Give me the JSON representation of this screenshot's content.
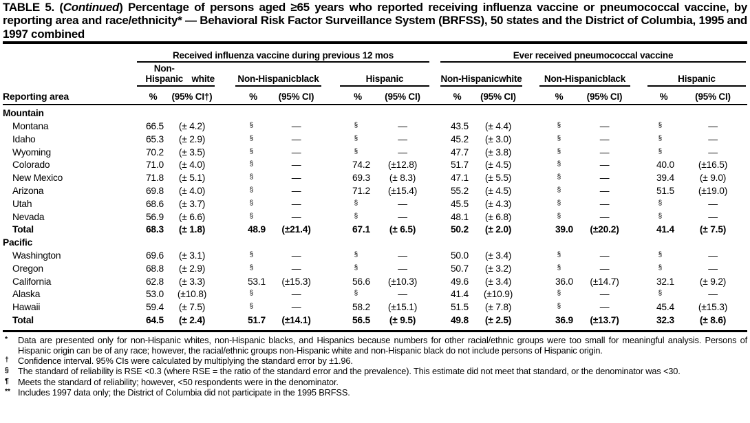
{
  "title": {
    "lead": "TABLE 5. (",
    "continued": "Continued",
    "rest": ") Percentage of persons aged ≥65 years who reported receiving influenza vaccine or pneumococcal vaccine, by reporting area and race/ethnicity* — Behavioral Risk Factor Surveillance System (BRFSS), 50 states and the District of Columbia, 1995 and 1997 combined"
  },
  "table": {
    "reporting_area_label": "Reporting area",
    "pct_label": "%",
    "ci_labels": [
      "(95% CI†)",
      "(95% CI)",
      "(95% CI)",
      "(95% CI)",
      "(95% CI)",
      "(95% CI)"
    ],
    "groups": [
      {
        "label": "Received influenza vaccine during previous 12 mos",
        "subgroups": [
          [
            "Non-Hispanic",
            "white"
          ],
          [
            "Non-Hispanic",
            "black"
          ],
          [
            "Hispanic"
          ]
        ]
      },
      {
        "label": "Ever received pneumococcal vaccine",
        "subgroups": [
          [
            "Non-Hispanic",
            "white"
          ],
          [
            "Non-Hispanic",
            "black"
          ],
          [
            "Hispanic"
          ]
        ]
      }
    ],
    "missing_symbol": "§",
    "missing_ci": "—",
    "sections": [
      {
        "name": "Mountain",
        "rows": [
          {
            "area": "Montana",
            "values": [
              [
                "66.5",
                "(± 4.2)"
              ],
              [
                "§",
                "—"
              ],
              [
                "§",
                "—"
              ],
              [
                "43.5",
                "(± 4.4)"
              ],
              [
                "§",
                "—"
              ],
              [
                "§",
                "—"
              ]
            ]
          },
          {
            "area": "Idaho",
            "values": [
              [
                "65.3",
                "(± 2.9)"
              ],
              [
                "§",
                "—"
              ],
              [
                "§",
                "—"
              ],
              [
                "45.2",
                "(± 3.0)"
              ],
              [
                "§",
                "—"
              ],
              [
                "§",
                "—"
              ]
            ]
          },
          {
            "area": "Wyoming",
            "values": [
              [
                "70.2",
                "(± 3.5)"
              ],
              [
                "§",
                "—"
              ],
              [
                "§",
                "—"
              ],
              [
                "47.7",
                "(± 3.8)"
              ],
              [
                "§",
                "—"
              ],
              [
                "§",
                "—"
              ]
            ]
          },
          {
            "area": "Colorado",
            "values": [
              [
                "71.0",
                "(± 4.0)"
              ],
              [
                "§",
                "—"
              ],
              [
                "74.2",
                "(±12.8)"
              ],
              [
                "51.7",
                "(± 4.5)"
              ],
              [
                "§",
                "—"
              ],
              [
                "40.0",
                "(±16.5)"
              ]
            ]
          },
          {
            "area": "New Mexico",
            "values": [
              [
                "71.8",
                "(± 5.1)"
              ],
              [
                "§",
                "—"
              ],
              [
                "69.3",
                "(± 8.3)"
              ],
              [
                "47.1",
                "(± 5.5)"
              ],
              [
                "§",
                "—"
              ],
              [
                "39.4",
                "(± 9.0)"
              ]
            ]
          },
          {
            "area": "Arizona",
            "values": [
              [
                "69.8",
                "(± 4.0)"
              ],
              [
                "§",
                "—"
              ],
              [
                "71.2",
                "(±15.4)"
              ],
              [
                "55.2",
                "(± 4.5)"
              ],
              [
                "§",
                "—"
              ],
              [
                "51.5",
                "(±19.0)"
              ]
            ]
          },
          {
            "area": "Utah",
            "values": [
              [
                "68.6",
                "(± 3.7)"
              ],
              [
                "§",
                "—"
              ],
              [
                "§",
                "—"
              ],
              [
                "45.5",
                "(± 4.3)"
              ],
              [
                "§",
                "—"
              ],
              [
                "§",
                "—"
              ]
            ]
          },
          {
            "area": "Nevada",
            "values": [
              [
                "56.9",
                "(± 6.6)"
              ],
              [
                "§",
                "—"
              ],
              [
                "§",
                "—"
              ],
              [
                "48.1",
                "(± 6.8)"
              ],
              [
                "§",
                "—"
              ],
              [
                "§",
                "—"
              ]
            ]
          },
          {
            "area": "Total",
            "bold": true,
            "values": [
              [
                "68.3",
                "(± 1.8)"
              ],
              [
                "48.9",
                "(±21.4)"
              ],
              [
                "67.1",
                "(± 6.5)"
              ],
              [
                "50.2",
                "(± 2.0)"
              ],
              [
                "39.0",
                "(±20.2)"
              ],
              [
                "41.4",
                "(± 7.5)"
              ]
            ]
          }
        ]
      },
      {
        "name": "Pacific",
        "rows": [
          {
            "area": "Washington",
            "values": [
              [
                "69.6",
                "(± 3.1)"
              ],
              [
                "§",
                "—"
              ],
              [
                "§",
                "—"
              ],
              [
                "50.0",
                "(± 3.4)"
              ],
              [
                "§",
                "—"
              ],
              [
                "§",
                "—"
              ]
            ]
          },
          {
            "area": "Oregon",
            "values": [
              [
                "68.8",
                "(± 2.9)"
              ],
              [
                "§",
                "—"
              ],
              [
                "§",
                "—"
              ],
              [
                "50.7",
                "(± 3.2)"
              ],
              [
                "§",
                "—"
              ],
              [
                "§",
                "—"
              ]
            ]
          },
          {
            "area": "California",
            "values": [
              [
                "62.8",
                "(± 3.3)"
              ],
              [
                "53.1",
                "(±15.3)"
              ],
              [
                "56.6",
                "(±10.3)"
              ],
              [
                "49.6",
                "(± 3.4)"
              ],
              [
                "36.0",
                "(±14.7)"
              ],
              [
                "32.1",
                "(± 9.2)"
              ]
            ]
          },
          {
            "area": "Alaska",
            "values": [
              [
                "53.0",
                "(±10.8)"
              ],
              [
                "§",
                "—"
              ],
              [
                "§",
                "—"
              ],
              [
                "41.4",
                "(±10.9)"
              ],
              [
                "§",
                "—"
              ],
              [
                "§",
                "—"
              ]
            ]
          },
          {
            "area": "Hawaii",
            "values": [
              [
                "59.4",
                "(± 7.5)"
              ],
              [
                "§",
                "—"
              ],
              [
                "58.2",
                "(±15.1)"
              ],
              [
                "51.5",
                "(± 7.8)"
              ],
              [
                "§",
                "—"
              ],
              [
                "45.4",
                "(±15.3)"
              ]
            ]
          },
          {
            "area": "Total",
            "bold": true,
            "values": [
              [
                "64.5",
                "(± 2.4)"
              ],
              [
                "51.7",
                "(±14.1)"
              ],
              [
                "56.5",
                "(± 9.5)"
              ],
              [
                "49.8",
                "(± 2.5)"
              ],
              [
                "36.9",
                "(±13.7)"
              ],
              [
                "32.3",
                "(± 8.6)"
              ]
            ]
          }
        ]
      }
    ]
  },
  "footnotes": [
    {
      "symbol": "*",
      "text": "Data are presented only for non-Hispanic whites, non-Hispanic blacks, and Hispanics because numbers for other racial/ethnic groups were too small for meaningful analysis. Persons of Hispanic origin can be of any race; however, the racial/ethnic groups non-Hispanic white and non-Hispanic black do not include persons of Hispanic origin."
    },
    {
      "symbol": "†",
      "text": "Confidence interval. 95% CIs were calculated by multiplying the standard error by ±1.96."
    },
    {
      "symbol": "§",
      "text": "The standard of reliability is RSE <0.3 (where RSE = the ratio of the standard error and the prevalence). This estimate did not meet that standard, or the denominator was <30."
    },
    {
      "symbol": "¶",
      "text": "Meets the standard of reliability; however, <50 respondents were in the denominator."
    },
    {
      "symbol": "**",
      "text": "Includes 1997 data only; the District of Columbia did not participate in the 1995 BRFSS."
    }
  ],
  "colors": {
    "ink": "#000000",
    "paper": "#ffffff"
  }
}
